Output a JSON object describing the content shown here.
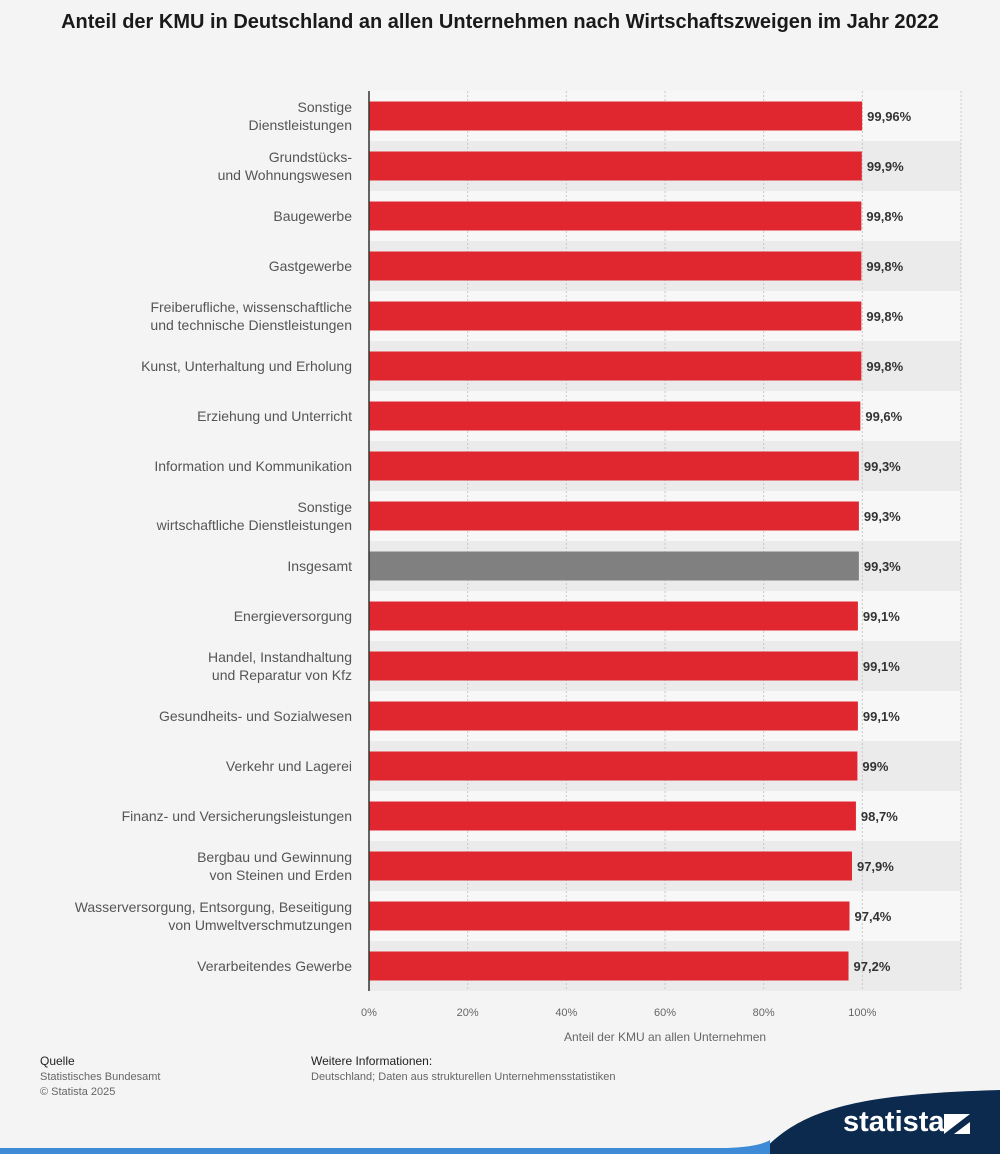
{
  "title": "Anteil der KMU in Deutschland an allen Unternehmen nach Wirtschaftszweigen im Jahr 2022",
  "colors": {
    "bar": "#e0262e",
    "highlight": "#808080",
    "band": "#ebebeb",
    "grid": "#c8c8c8"
  },
  "chart_data": {
    "type": "bar",
    "orientation": "horizontal",
    "title": "Anteil der KMU in Deutschland an allen Unternehmen nach Wirtschaftszweigen im Jahr 2022",
    "xlabel": "Anteil der KMU an allen Unternehmen",
    "ylabel": "",
    "xlim": [
      0,
      120
    ],
    "xticks": [
      "0%",
      "20%",
      "40%",
      "60%",
      "80%",
      "100%"
    ],
    "grid": true,
    "categories": [
      [
        "Sonstige",
        "Dienstleistungen"
      ],
      [
        "Grundstücks-",
        "und Wohnungswesen"
      ],
      [
        "Baugewerbe"
      ],
      [
        "Gastgewerbe"
      ],
      [
        "Freiberufliche, wissenschaftliche",
        "und technische Dienstleistungen"
      ],
      [
        "Kunst, Unterhaltung und Erholung"
      ],
      [
        "Erziehung und Unterricht"
      ],
      [
        "Information und Kommunikation"
      ],
      [
        "Sonstige",
        "wirtschaftliche Dienstleistungen"
      ],
      [
        "Insgesamt"
      ],
      [
        "Energieversorgung"
      ],
      [
        "Handel, Instandhaltung",
        "und Reparatur von Kfz"
      ],
      [
        "Gesundheits- und Sozialwesen"
      ],
      [
        "Verkehr und Lagerei"
      ],
      [
        "Finanz- und Versicherungsleistungen"
      ],
      [
        "Bergbau und Gewinnung",
        "von Steinen und Erden"
      ],
      [
        "Wasserversorgung, Entsorgung, Beseitigung",
        "von Umweltverschmutzungen"
      ],
      [
        "Verarbeitendes Gewerbe"
      ]
    ],
    "values": [
      99.96,
      99.9,
      99.8,
      99.8,
      99.8,
      99.8,
      99.6,
      99.3,
      99.3,
      99.3,
      99.1,
      99.1,
      99.1,
      99.0,
      98.7,
      97.9,
      97.4,
      97.2
    ],
    "value_labels": [
      "99,96%",
      "99,9%",
      "99,8%",
      "99,8%",
      "99,8%",
      "99,8%",
      "99,6%",
      "99,3%",
      "99,3%",
      "99,3%",
      "99,1%",
      "99,1%",
      "99,1%",
      "99%",
      "98,7%",
      "97,9%",
      "97,4%",
      "97,2%"
    ],
    "highlight_index": 9
  },
  "footer": {
    "quelle_label": "Quelle",
    "quelle_source": "Statistisches Bundesamt",
    "copyright": "© Statista 2025",
    "info_label": "Weitere Informationen:",
    "info_text": "Deutschland; Daten aus strukturellen Unternehmensstatistiken"
  },
  "brand": {
    "name": "statista",
    "color": "#0b2a4e",
    "accent": "#3d8bd6"
  }
}
